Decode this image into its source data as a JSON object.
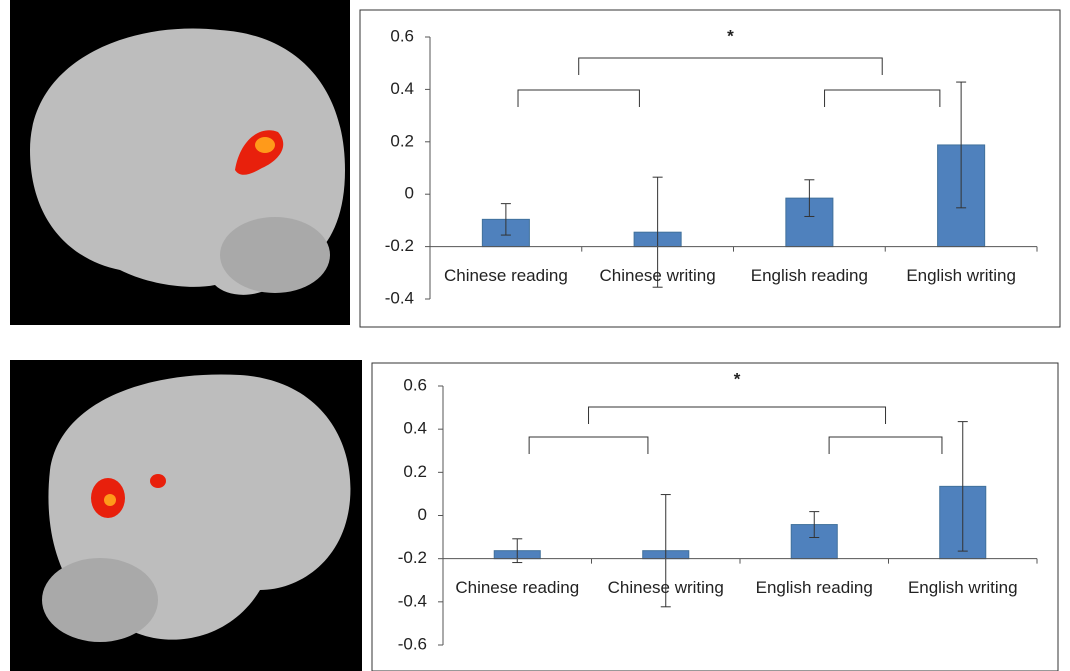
{
  "chart_data": [
    {
      "type": "bar",
      "categories": [
        "Chinese reading",
        "Chinese writing",
        "English reading",
        "English writing"
      ],
      "values": [
        -0.096,
        -0.145,
        -0.015,
        0.188
      ],
      "errors": [
        0.06,
        0.21,
        0.07,
        0.24
      ],
      "color": "#4f81bd",
      "xaxis_crossing": -0.2,
      "ylim": [
        -0.4,
        0.6
      ],
      "yticks": [
        -0.4,
        -0.2,
        0,
        0.2,
        0.4,
        0.6
      ],
      "annotation": "*"
    },
    {
      "type": "bar",
      "categories": [
        "Chinese reading",
        "Chinese writing",
        "English reading",
        "English writing"
      ],
      "values": [
        -0.163,
        -0.163,
        -0.042,
        0.135
      ],
      "errors": [
        0.055,
        0.26,
        0.06,
        0.3
      ],
      "color": "#4f81bd",
      "xaxis_crossing": -0.2,
      "ylim": [
        -0.6,
        0.6
      ],
      "yticks": [
        -0.6,
        -0.4,
        -0.2,
        0,
        0.2,
        0.4,
        0.6
      ],
      "annotation": "*"
    }
  ]
}
